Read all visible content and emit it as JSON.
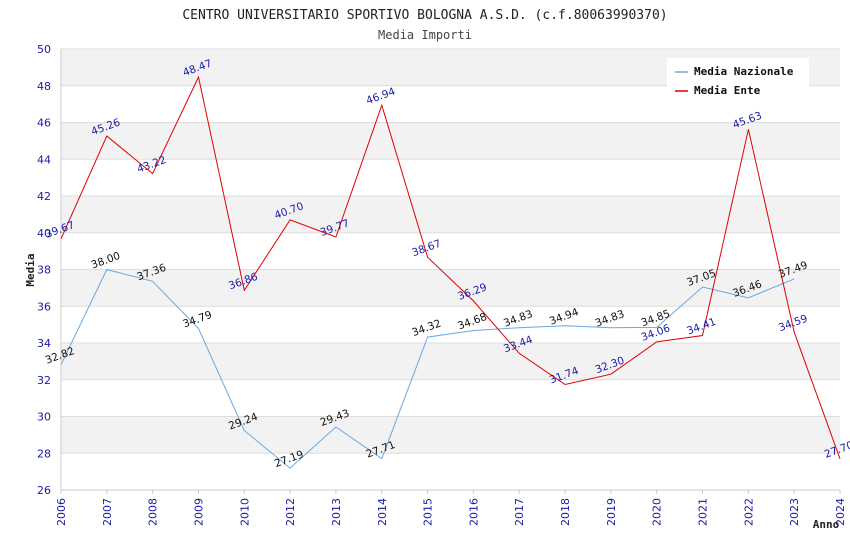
{
  "chart_data": {
    "type": "line",
    "title": "CENTRO UNIVERSITARIO SPORTIVO BOLOGNA A.S.D. (c.f.80063990370)",
    "subtitle": "Media Importi",
    "xlabel": "Anno",
    "ylabel": "Media",
    "ylim": [
      26,
      50
    ],
    "yticks": [
      "26",
      "28",
      "30",
      "32",
      "34",
      "36",
      "38",
      "40",
      "42",
      "44",
      "46",
      "48",
      "50"
    ],
    "categories": [
      "2006",
      "2007",
      "2008",
      "2009",
      "2010",
      "2012",
      "2013",
      "2014",
      "2015",
      "2016",
      "2017",
      "2018",
      "2019",
      "2020",
      "2021",
      "2022",
      "2023",
      "2024"
    ],
    "grid": true,
    "legend_position": "top-right",
    "series": [
      {
        "name": "Media Nazionale",
        "color": "#6aa8e0",
        "label_color": "#111111",
        "values": [
          32.82,
          38.0,
          37.36,
          34.79,
          29.24,
          27.19,
          29.43,
          27.71,
          34.32,
          34.68,
          34.83,
          34.94,
          34.83,
          34.85,
          37.05,
          36.46,
          37.49,
          null
        ],
        "labels": [
          "32.82",
          "38.00",
          "37.36",
          "34.79",
          "29.24",
          "27.19",
          "29.43",
          "27.71",
          "34.32",
          "34.68",
          "34.83",
          "34.94",
          "34.83",
          "34.85",
          "37.05",
          "36.46",
          "37.49",
          null
        ]
      },
      {
        "name": "Media Ente",
        "color": "#e00000",
        "label_color": "#1a1aa6",
        "values": [
          39.67,
          45.26,
          43.22,
          48.47,
          36.86,
          40.7,
          39.77,
          46.94,
          38.67,
          36.29,
          33.44,
          31.74,
          32.3,
          34.06,
          34.41,
          45.63,
          34.59,
          27.7
        ],
        "labels": [
          "39.67",
          "45.26",
          "43.22",
          "48.47",
          "36.86",
          "40.70",
          "39.77",
          "46.94",
          "38.67",
          "36.29",
          "33.44",
          "31.74",
          "32.30",
          "34.06",
          "34.41",
          "45.63",
          "34.59",
          "27.70"
        ]
      }
    ]
  }
}
